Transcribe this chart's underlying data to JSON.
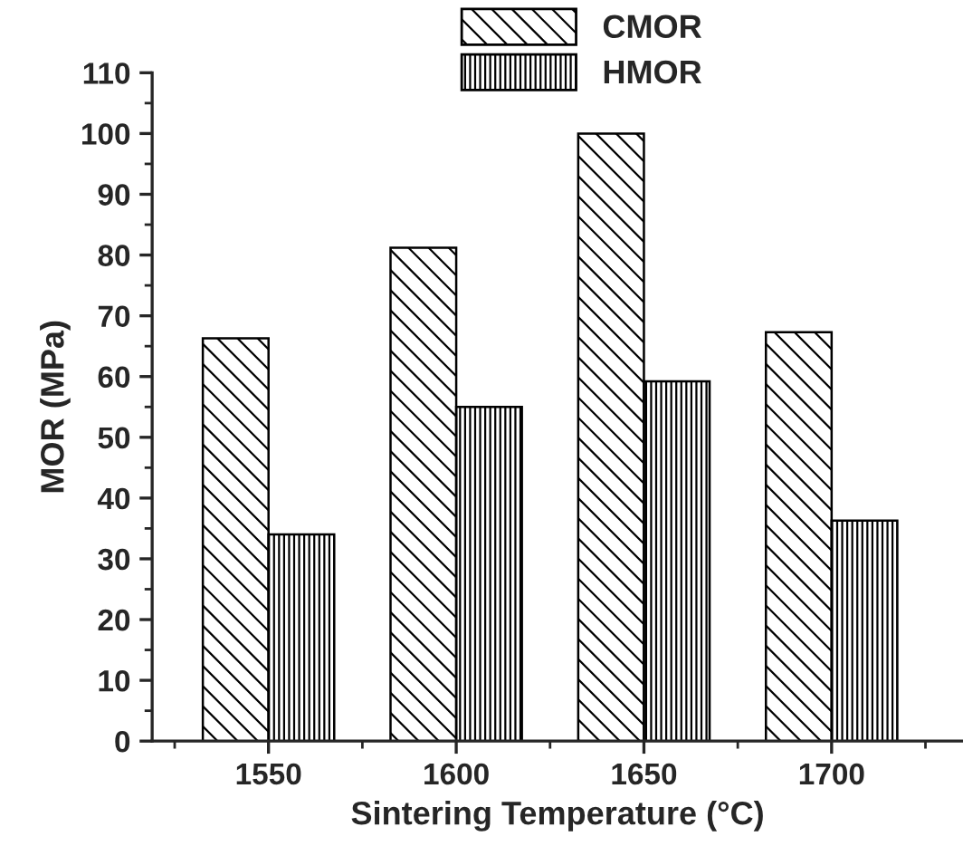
{
  "chart_data": {
    "type": "bar",
    "xlabel": "Sintering Temperature (°C)",
    "ylabel": "MOR (MPa)",
    "categories": [
      "1550",
      "1600",
      "1650",
      "1700"
    ],
    "series": [
      {
        "name": "CMOR",
        "color": "#000000",
        "values": [
          66.3,
          81.2,
          100,
          67.3
        ]
      },
      {
        "name": "HMOR",
        "color": "#000000",
        "values": [
          34,
          55,
          59.2,
          36.3
        ]
      }
    ],
    "ylim": [
      0,
      110
    ],
    "yticks": [
      0,
      10,
      20,
      30,
      40,
      50,
      60,
      70,
      80,
      90,
      100,
      110
    ],
    "grid": false,
    "legend": "top"
  }
}
